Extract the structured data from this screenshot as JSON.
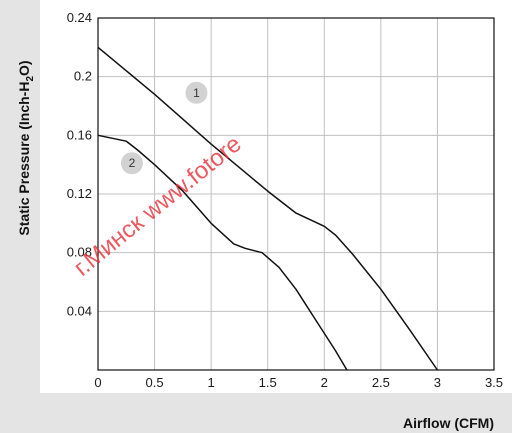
{
  "chart_data": {
    "type": "line",
    "xlabel": "Airflow (CFM)",
    "ylabel_parts": [
      "Static Pressure (Inch-H",
      "2",
      "O)"
    ],
    "xlim": [
      0,
      3.5
    ],
    "ylim": [
      0,
      0.24
    ],
    "x_ticks": [
      0,
      0.5,
      1,
      1.5,
      2,
      2.5,
      3,
      3.5
    ],
    "x_tick_labels": [
      "0",
      "0.5",
      "1",
      "1.5",
      "2",
      "2.5",
      "3",
      "3.5"
    ],
    "y_ticks": [
      0.04,
      0.08,
      0.12,
      0.16,
      0.2,
      0.24
    ],
    "y_tick_labels": [
      "0.04",
      "0.08",
      "0.12",
      "0.16",
      "0.2",
      "0.24"
    ],
    "grid": true,
    "series": [
      {
        "marker_label": "1",
        "marker_at": [
          0.87,
          0.189
        ],
        "points": [
          [
            0,
            0.22
          ],
          [
            0.25,
            0.204
          ],
          [
            0.5,
            0.188
          ],
          [
            0.75,
            0.171
          ],
          [
            1.0,
            0.154
          ],
          [
            1.25,
            0.138
          ],
          [
            1.5,
            0.122
          ],
          [
            1.75,
            0.107
          ],
          [
            2.0,
            0.098
          ],
          [
            2.1,
            0.092
          ],
          [
            2.25,
            0.079
          ],
          [
            2.5,
            0.055
          ],
          [
            2.75,
            0.028
          ],
          [
            3.0,
            0.0
          ]
        ]
      },
      {
        "marker_label": "2",
        "marker_at": [
          0.3,
          0.141
        ],
        "points": [
          [
            0,
            0.16
          ],
          [
            0.25,
            0.156
          ],
          [
            0.35,
            0.15
          ],
          [
            0.5,
            0.14
          ],
          [
            0.75,
            0.122
          ],
          [
            1.0,
            0.1
          ],
          [
            1.2,
            0.086
          ],
          [
            1.3,
            0.083
          ],
          [
            1.45,
            0.08
          ],
          [
            1.6,
            0.07
          ],
          [
            1.75,
            0.055
          ],
          [
            1.95,
            0.031
          ],
          [
            2.1,
            0.013
          ],
          [
            2.2,
            0.0
          ]
        ]
      }
    ]
  },
  "colors": {
    "panel": "#e4e4e4",
    "plot_bg": "#ffffff",
    "grid": "#c0c0c0",
    "line": "#111111",
    "marker_fill": "#d2d2d2",
    "watermark": "#e8323a"
  },
  "watermark": {
    "text": "г.Минск www.fotore"
  }
}
